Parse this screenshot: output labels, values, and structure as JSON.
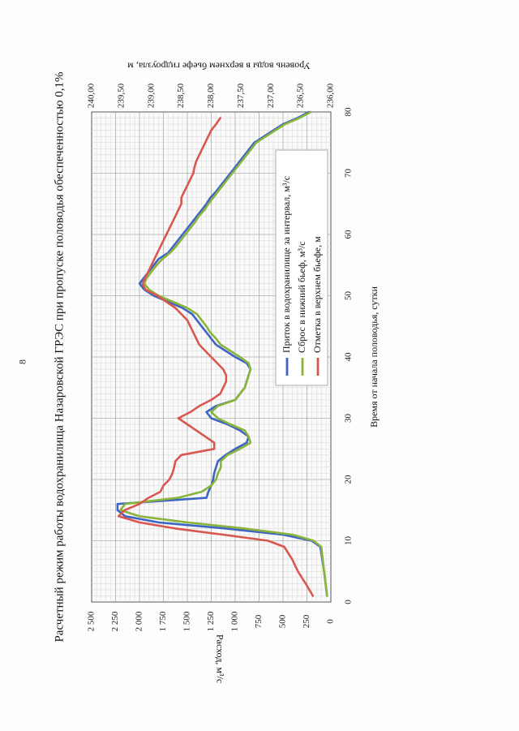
{
  "page": {
    "number": "8"
  },
  "chart_data": {
    "type": "line",
    "title": "Расчетный режим работы водохранилища Назаровской ГРЭС при пропуске половодья обеспеченностью 0,1%",
    "xlabel": "Время от начала половодья, сутки",
    "ylabel": "Расход, м³/с",
    "y2label": "Уровень воды в верхнем бьефе гидроузла, м",
    "xlim": [
      0,
      80
    ],
    "ylim": [
      0,
      2500
    ],
    "y2lim": [
      236.0,
      240.0
    ],
    "x_ticks": [
      "0",
      "10",
      "20",
      "30",
      "40",
      "50",
      "60",
      "70",
      "80"
    ],
    "y_ticks": [
      "0",
      "250",
      "500",
      "750",
      "1 000",
      "1 250",
      "1 500",
      "1 750",
      "2 000",
      "2 250",
      "2 500"
    ],
    "y2_ticks": [
      "236,00",
      "236,50",
      "237,00",
      "237,50",
      "238,00",
      "238,50",
      "239,00",
      "239,50",
      "240,00"
    ],
    "legend": {
      "placement": "bottom-right",
      "entries": [
        "Приток в водохранилище за интервал,  м³/с",
        "Сброс в нижний бьеф,  м³/с",
        "Отметка в верхнем бьефе, м"
      ]
    },
    "series": [
      {
        "name": "Приток в водохранилище за интервал,  м³/с",
        "axis": "left",
        "color": "#3e64c4",
        "x": [
          1,
          5,
          9,
          10,
          11,
          12,
          13,
          14,
          15,
          16,
          17,
          18,
          19,
          20,
          21,
          22,
          23,
          24,
          25,
          26,
          27,
          28,
          29,
          30,
          31,
          32,
          33,
          34,
          35,
          36,
          37,
          38,
          39,
          40,
          41,
          42,
          43,
          44,
          45,
          46,
          47,
          48,
          49,
          50,
          51,
          52,
          53,
          54,
          55,
          56,
          57,
          58,
          59,
          60,
          61,
          62,
          63,
          64,
          65,
          66,
          67,
          68,
          69,
          70,
          71,
          72,
          73,
          74,
          75,
          76,
          77,
          78,
          79,
          80
        ],
        "y": [
          40,
          70,
          110,
          200,
          500,
          1100,
          1800,
          2150,
          2230,
          2230,
          1300,
          1280,
          1250,
          1230,
          1220,
          1200,
          1180,
          1100,
          1000,
          880,
          860,
          950,
          1080,
          1250,
          1300,
          1200,
          1000,
          950,
          900,
          880,
          860,
          840,
          880,
          1000,
          1100,
          1200,
          1250,
          1300,
          1350,
          1400,
          1450,
          1550,
          1700,
          1850,
          1950,
          2000,
          1950,
          1900,
          1850,
          1800,
          1700,
          1650,
          1600,
          1550,
          1500,
          1450,
          1400,
          1350,
          1300,
          1260,
          1200,
          1150,
          1100,
          1050,
          1000,
          950,
          900,
          850,
          800,
          700,
          600,
          500,
          350,
          230
        ]
      },
      {
        "name": "Сброс в нижний бьеф,  м³/с",
        "axis": "left",
        "color": "#8ab43a",
        "x": [
          1,
          5,
          9,
          10,
          11,
          12,
          13,
          14,
          15,
          16,
          17,
          18,
          19,
          20,
          21,
          22,
          23,
          24,
          25,
          26,
          27,
          28,
          29,
          30,
          31,
          32,
          33,
          34,
          35,
          36,
          37,
          38,
          39,
          40,
          41,
          42,
          43,
          44,
          45,
          46,
          47,
          48,
          49,
          50,
          51,
          52,
          53,
          54,
          55,
          56,
          57,
          58,
          59,
          60,
          61,
          62,
          63,
          64,
          65,
          66,
          67,
          68,
          69,
          70,
          71,
          72,
          73,
          74,
          75,
          76,
          77,
          78,
          79,
          80
        ],
        "y": [
          40,
          70,
          100,
          180,
          400,
          900,
          1500,
          2000,
          2200,
          2150,
          1600,
          1350,
          1250,
          1200,
          1180,
          1150,
          1150,
          1080,
          950,
          840,
          860,
          900,
          1050,
          1180,
          1250,
          1180,
          1000,
          950,
          900,
          880,
          860,
          840,
          860,
          950,
          1050,
          1150,
          1200,
          1260,
          1300,
          1350,
          1400,
          1500,
          1650,
          1800,
          1900,
          1950,
          1920,
          1870,
          1820,
          1760,
          1680,
          1620,
          1570,
          1520,
          1470,
          1420,
          1380,
          1320,
          1280,
          1230,
          1180,
          1130,
          1080,
          1030,
          980,
          930,
          880,
          830,
          780,
          680,
          580,
          480,
          330,
          210
        ]
      },
      {
        "name": "Отметка в верхнем бьефе, м",
        "axis": "right",
        "color": "#d9574f",
        "x": [
          1,
          3,
          5,
          7,
          9,
          10,
          11,
          12,
          13,
          14,
          15,
          16,
          17,
          18,
          19,
          20,
          21,
          22,
          23,
          24,
          25,
          26,
          27,
          28,
          29,
          30,
          31,
          32,
          33,
          34,
          35,
          36,
          37,
          38,
          39,
          40,
          41,
          42,
          43,
          44,
          45,
          46,
          47,
          48,
          49,
          50,
          51,
          52,
          53,
          54,
          55,
          56,
          57,
          58,
          59,
          60,
          61,
          62,
          63,
          64,
          65,
          66,
          67,
          68,
          69,
          70,
          71,
          72,
          73,
          74,
          75,
          76,
          77,
          78,
          79
        ],
        "y": [
          236.3,
          236.42,
          236.55,
          236.65,
          236.78,
          237.05,
          237.8,
          238.6,
          239.2,
          239.55,
          239.45,
          239.2,
          239.05,
          238.85,
          238.8,
          238.7,
          238.65,
          238.62,
          238.6,
          238.5,
          237.95,
          237.95,
          238.1,
          238.25,
          238.4,
          238.55,
          238.35,
          238.2,
          238.0,
          237.85,
          237.8,
          237.75,
          237.75,
          237.8,
          237.9,
          238.0,
          238.1,
          238.2,
          238.25,
          238.3,
          238.35,
          238.4,
          238.5,
          238.6,
          238.75,
          238.9,
          239.1,
          239.15,
          239.1,
          239.05,
          239.0,
          238.95,
          238.9,
          238.85,
          238.8,
          238.75,
          238.7,
          238.65,
          238.6,
          238.55,
          238.5,
          238.5,
          238.45,
          238.4,
          238.35,
          238.3,
          238.28,
          238.25,
          238.2,
          238.15,
          238.1,
          238.05,
          238.0,
          237.92,
          237.85
        ]
      }
    ]
  }
}
